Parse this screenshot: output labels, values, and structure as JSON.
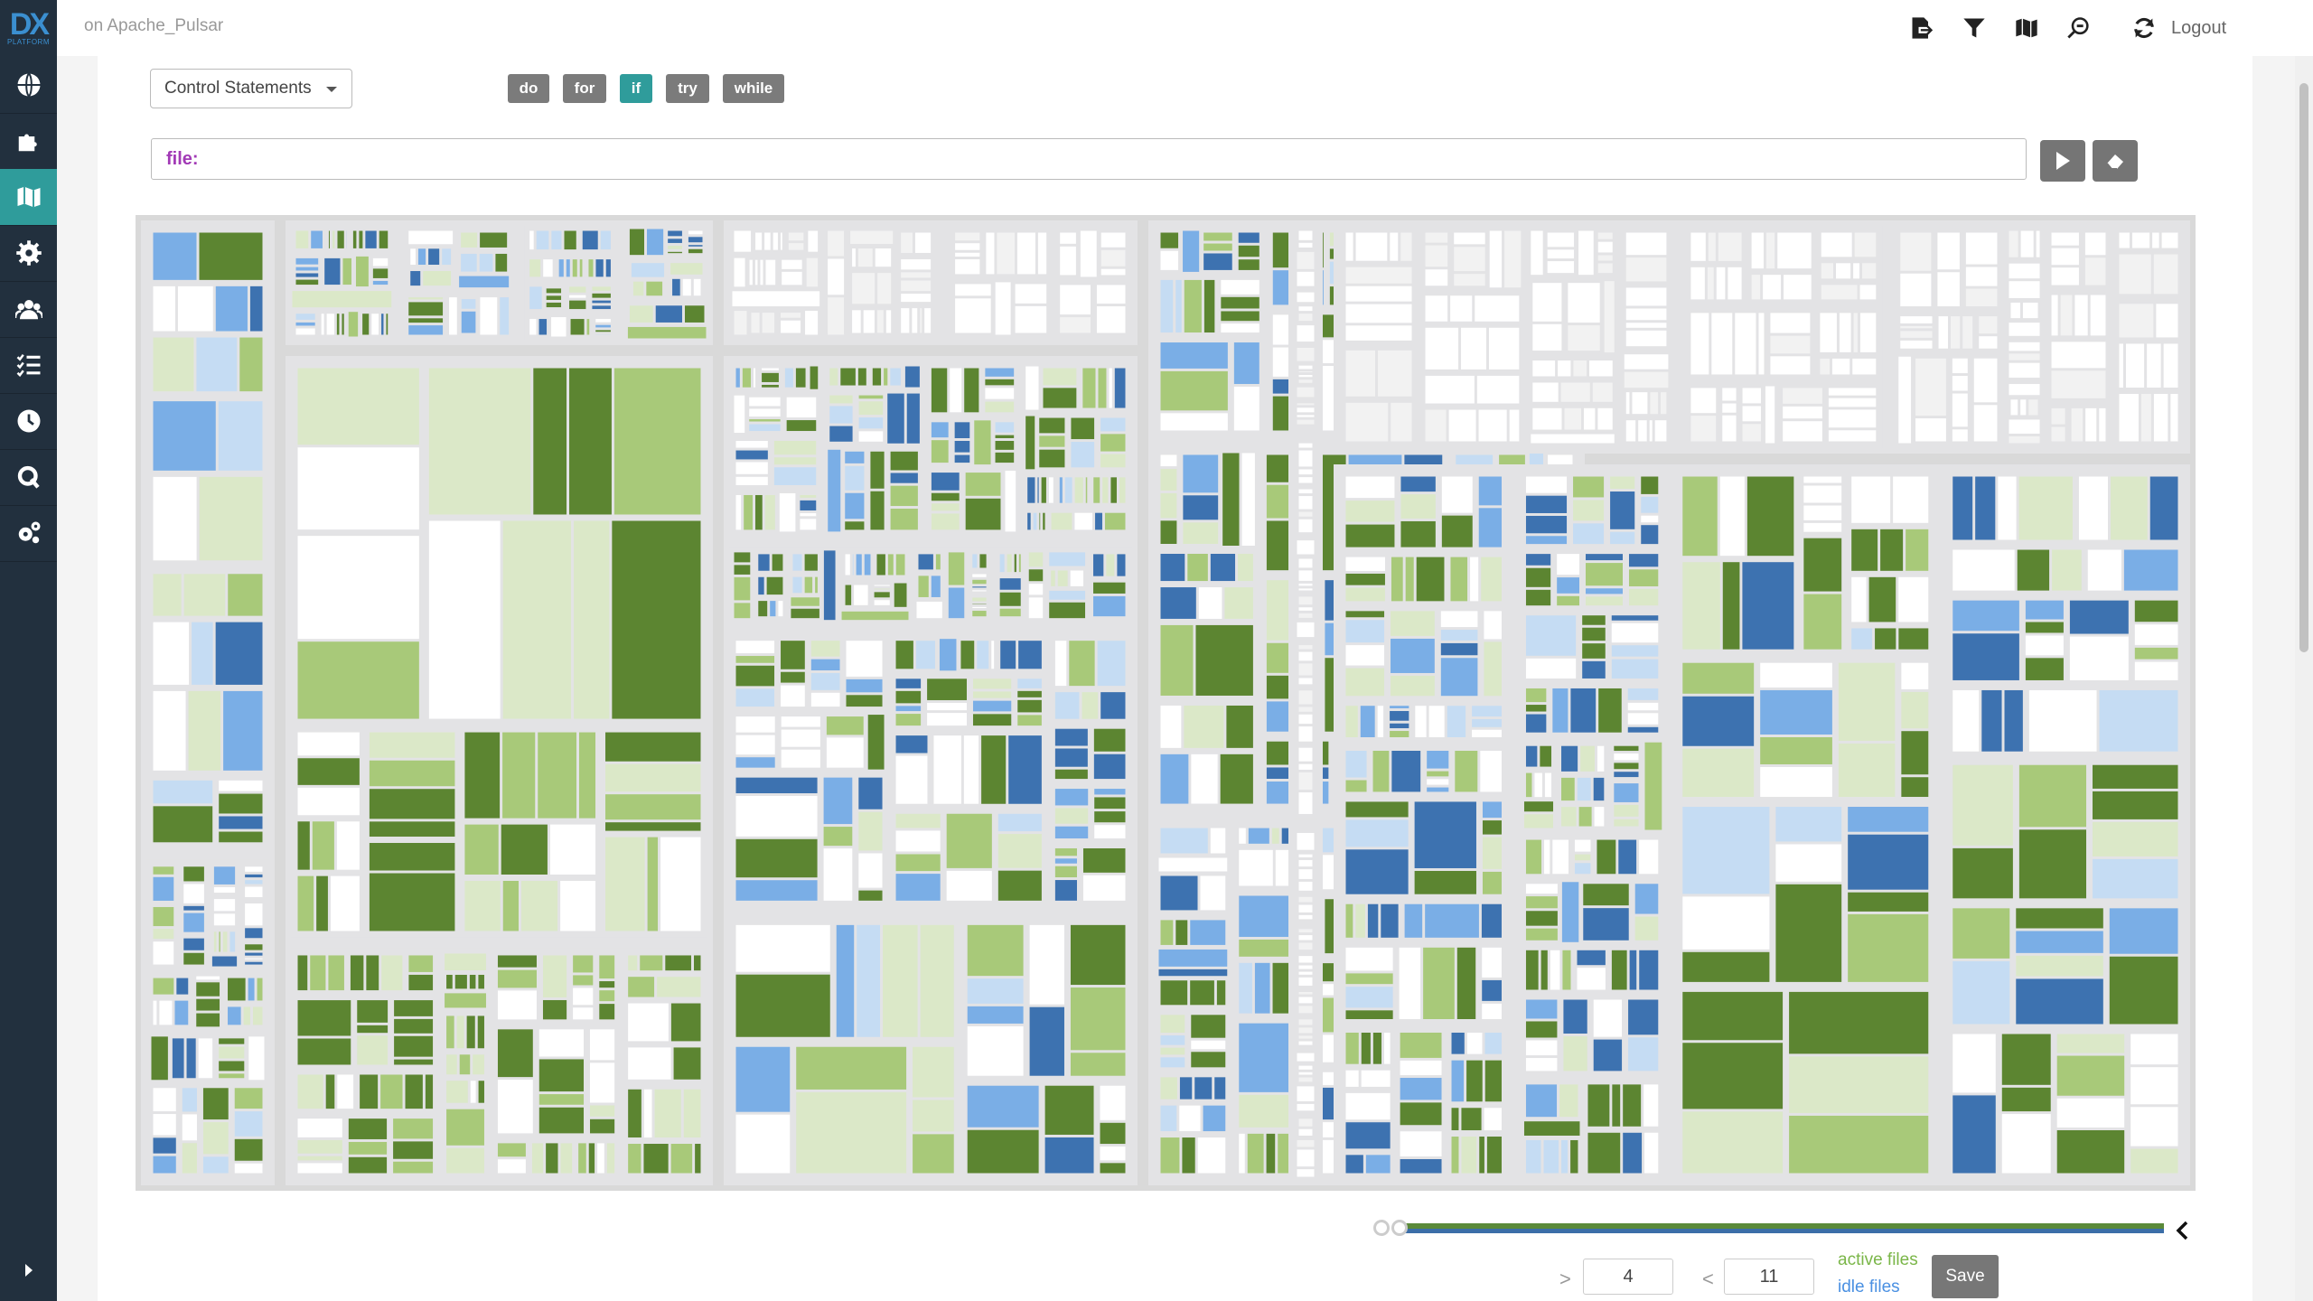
{
  "app": {
    "logo_text": "DX",
    "logo_subtext": "PLATFORM",
    "project_title": "on Apache_Pulsar"
  },
  "sidebar": {
    "items": [
      {
        "name": "globe-icon",
        "active": false
      },
      {
        "name": "puzzle-icon",
        "active": false
      },
      {
        "name": "map-icon",
        "active": true
      },
      {
        "name": "gear-icon",
        "active": false
      },
      {
        "name": "users-icon",
        "active": false
      },
      {
        "name": "list-icon",
        "active": false
      },
      {
        "name": "clock-icon",
        "active": false
      },
      {
        "name": "query-icon",
        "active": false
      },
      {
        "name": "cogs-icon",
        "active": false
      }
    ]
  },
  "topbar": {
    "icons": [
      "export-icon",
      "filter-icon",
      "map-icon",
      "zoom-out-icon",
      "refresh-icon"
    ],
    "logout_label": "Logout"
  },
  "controls": {
    "dropdown_value": "Control Statements",
    "keywords": [
      {
        "label": "do",
        "active": false
      },
      {
        "label": "for",
        "active": false
      },
      {
        "label": "if",
        "active": true
      },
      {
        "label": "try",
        "active": false
      },
      {
        "label": "while",
        "active": false
      }
    ],
    "file_filter_label": "file:"
  },
  "colors": {
    "active_dark": "#5c8531",
    "active_light": "#a8c979",
    "active_pale": "#dbe8c8",
    "idle_dark": "#3d72b0",
    "idle_light": "#7aaee6",
    "idle_pale": "#c5dcf3",
    "accent": "#2f9c9b"
  },
  "footer": {
    "range_min_sign": ">",
    "range_min_value": "4",
    "range_max_sign": "<",
    "range_max_value": "11",
    "legend_active": "active files",
    "legend_idle": "idle files",
    "save_label": "Save"
  }
}
